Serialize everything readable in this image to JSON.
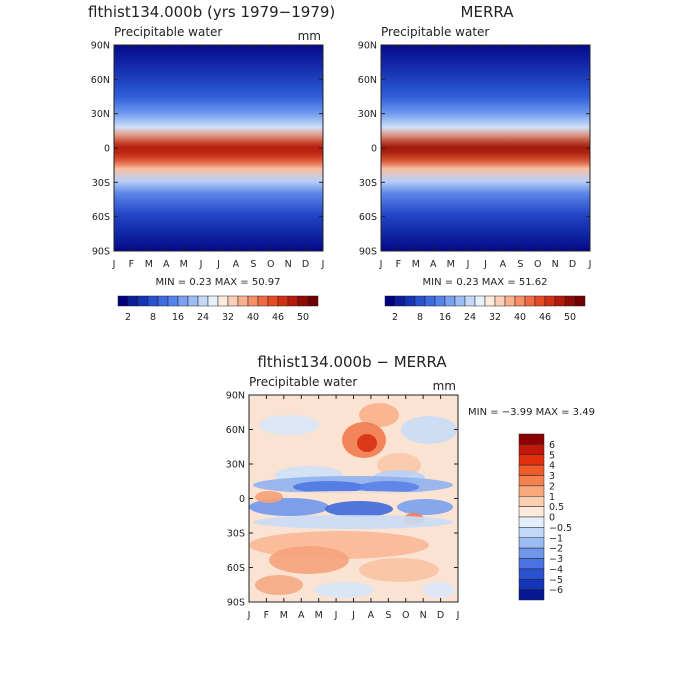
{
  "chart_data": [
    {
      "type": "heatmap",
      "title": "flthist134.000b (yrs 1979−1979)",
      "subtitle": "Precipitable water",
      "units": "mm",
      "x_ticks": [
        "J",
        "F",
        "M",
        "A",
        "M",
        "J",
        "J",
        "A",
        "S",
        "O",
        "N",
        "D",
        "J"
      ],
      "y_ticks": [
        "90N",
        "60N",
        "30N",
        "0",
        "30S",
        "60S",
        "90S"
      ],
      "ylim": [
        -90,
        90
      ],
      "stats_label": "MIN =    0.23  MAX =    50.97",
      "min": 0.23,
      "max": 50.97,
      "colorbar_levels": [
        2,
        4,
        6,
        8,
        10,
        13,
        16,
        19,
        22,
        24,
        28,
        32,
        35,
        38,
        40,
        43,
        46,
        48,
        50
      ],
      "colorbar_labels": [
        "2",
        "8",
        "16",
        "24",
        "32",
        "40",
        "46",
        "50"
      ],
      "colorbar_colors": [
        "#00007f",
        "#0a1f99",
        "#1535b8",
        "#2a52d0",
        "#3d6be0",
        "#5585ec",
        "#7aa2f2",
        "#9dbdf5",
        "#c4d9f7",
        "#e8f0fb",
        "#fdebdc",
        "#fcd0b6",
        "#f9b08e",
        "#f78e68",
        "#f26a43",
        "#e84a26",
        "#d12e14",
        "#b4190a",
        "#8f0b04",
        "#700000"
      ]
    },
    {
      "type": "heatmap",
      "title": "MERRA",
      "subtitle": "Precipitable water",
      "units": "",
      "x_ticks": [
        "J",
        "F",
        "M",
        "A",
        "M",
        "J",
        "J",
        "A",
        "S",
        "O",
        "N",
        "D",
        "J"
      ],
      "y_ticks": [
        "90N",
        "60N",
        "30N",
        "0",
        "30S",
        "60S",
        "90S"
      ],
      "ylim": [
        -90,
        90
      ],
      "stats_label": "MIN =    0.23  MAX =    51.62",
      "min": 0.23,
      "max": 51.62,
      "colorbar_labels": [
        "2",
        "8",
        "16",
        "24",
        "32",
        "40",
        "46",
        "50"
      ]
    },
    {
      "type": "heatmap",
      "title": "flthist134.000b − MERRA",
      "subtitle": "Precipitable water",
      "units": "mm",
      "x_ticks": [
        "J",
        "F",
        "M",
        "A",
        "M",
        "J",
        "J",
        "A",
        "S",
        "O",
        "N",
        "D",
        "J"
      ],
      "y_ticks": [
        "90N",
        "60N",
        "30N",
        "0",
        "30S",
        "60S",
        "90S"
      ],
      "ylim": [
        -90,
        90
      ],
      "stats_label": "MIN =   −3.99  MAX =    3.49",
      "min": -3.99,
      "max": 3.49,
      "colorbar_labels": [
        "6",
        "5",
        "4",
        "3",
        "2",
        "1",
        "0.5",
        "0",
        "−0.5",
        "−1",
        "−2",
        "−3",
        "−4",
        "−5",
        "−6"
      ],
      "colorbar_colors": [
        "#8b0000",
        "#c0180a",
        "#e0300f",
        "#f05a2a",
        "#f5824f",
        "#f8a97c",
        "#fbcfb2",
        "#fdeadd",
        "#e4eefb",
        "#c2d8f7",
        "#9bbcf3",
        "#7197ec",
        "#4a72e2",
        "#2a52d0",
        "#1535b8",
        "#06178f"
      ]
    }
  ]
}
